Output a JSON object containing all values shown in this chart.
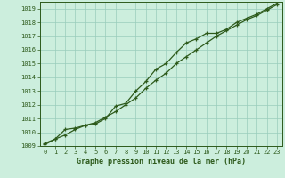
{
  "xlabel": "Graphe pression niveau de la mer (hPa)",
  "ylim": [
    1009,
    1019.5
  ],
  "xlim": [
    -0.5,
    23.5
  ],
  "yticks": [
    1009,
    1010,
    1011,
    1012,
    1013,
    1014,
    1015,
    1016,
    1017,
    1018,
    1019
  ],
  "xticks": [
    0,
    1,
    2,
    3,
    4,
    5,
    6,
    7,
    8,
    9,
    10,
    11,
    12,
    13,
    14,
    15,
    16,
    17,
    18,
    19,
    20,
    21,
    22,
    23
  ],
  "line1_x": [
    0,
    1,
    2,
    3,
    4,
    5,
    6,
    7,
    8,
    9,
    10,
    11,
    12,
    13,
    14,
    15,
    16,
    17,
    18,
    19,
    20,
    21,
    22,
    23
  ],
  "line1_y": [
    1009.2,
    1009.5,
    1009.8,
    1010.2,
    1010.5,
    1010.7,
    1011.1,
    1011.5,
    1012.0,
    1012.5,
    1013.2,
    1013.8,
    1014.3,
    1015.0,
    1015.5,
    1016.0,
    1016.5,
    1017.0,
    1017.4,
    1017.8,
    1018.2,
    1018.5,
    1018.9,
    1019.3
  ],
  "line2_x": [
    0,
    1,
    2,
    3,
    4,
    5,
    6,
    7,
    8,
    9,
    10,
    11,
    12,
    13,
    14,
    15,
    16,
    17,
    18,
    19,
    20,
    21,
    22,
    23
  ],
  "line2_y": [
    1009.1,
    1009.5,
    1010.2,
    1010.3,
    1010.5,
    1010.6,
    1011.0,
    1011.9,
    1012.1,
    1013.0,
    1013.7,
    1014.6,
    1015.0,
    1015.8,
    1016.5,
    1016.8,
    1017.2,
    1017.2,
    1017.5,
    1018.0,
    1018.3,
    1018.6,
    1019.0,
    1019.4
  ],
  "line_color": "#2d5a1b",
  "bg_color": "#cceedd",
  "grid_color": "#99ccbb",
  "text_color": "#2d5a1b",
  "tick_fontsize": 5.0,
  "label_fontsize": 6.0
}
